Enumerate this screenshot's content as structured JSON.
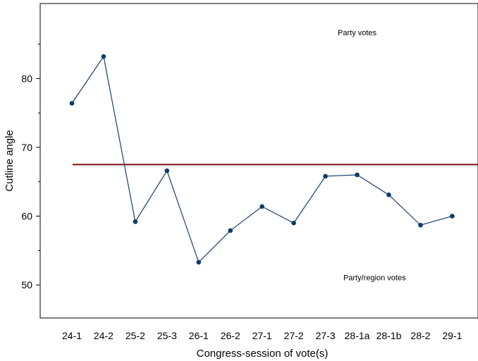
{
  "chart_data": {
    "type": "line",
    "xlabel": "Congress-session of vote(s)",
    "ylabel": "Cutline angle",
    "categories": [
      "24-1",
      "24-2",
      "25-2",
      "25-3",
      "26-1",
      "26-2",
      "27-1",
      "27-2",
      "27-3",
      "28-1a",
      "28-1b",
      "28-2",
      "29-1"
    ],
    "series": [
      {
        "values": [
          76.4,
          83.2,
          59.2,
          66.6,
          53.3,
          57.9,
          61.4,
          59.0,
          65.8,
          66.0,
          63.1,
          58.7,
          60.0
        ]
      }
    ],
    "reference_line": {
      "y": 67.5,
      "color": "#7a1010"
    },
    "annotations": [
      {
        "text": "Party votes",
        "x": 9.0,
        "y": 86.3
      },
      {
        "text": "Party/region votes",
        "x": 9.55,
        "y": 50.7
      }
    ],
    "yticks": [
      50,
      60,
      70,
      80
    ],
    "ylim": [
      45.2,
      90.9
    ],
    "grid": false,
    "colors": {
      "line": "#1a3d6e",
      "marker": "#0e3a6e"
    }
  }
}
